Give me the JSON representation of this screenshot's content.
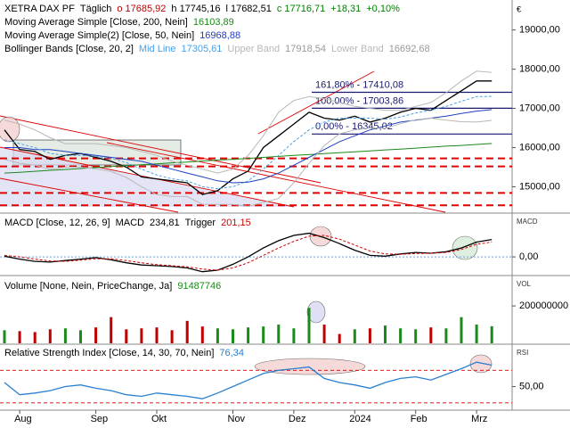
{
  "chart_data": [
    {
      "type": "line",
      "title": "XETRA DAX PF",
      "subtitle": "Täglich",
      "quote": [
        {
          "text": "o 17685,92",
          "color": "#c00000"
        },
        {
          "text": "h 17745,16",
          "color": "#000000"
        },
        {
          "text": "l 17682,51",
          "color": "#000000"
        },
        {
          "text": "c 17716,71",
          "color": "#008000"
        },
        {
          "text": "+18,31",
          "color": "#008000"
        },
        {
          "text": "+0,10%",
          "color": "#008000"
        }
      ],
      "currency": "€",
      "ylim": [
        14350,
        19720
      ],
      "yticks": [
        {
          "value": 15000,
          "label": "15000,00"
        },
        {
          "value": 16000,
          "label": "16000,00"
        },
        {
          "value": 17000,
          "label": "17000,00"
        },
        {
          "value": 18000,
          "label": "18000,00"
        },
        {
          "value": 19000,
          "label": "19000,00"
        }
      ],
      "series": [
        {
          "color": "#000000",
          "values": [
            16450,
            15950,
            15900,
            15700,
            15800,
            15850,
            15750,
            15650,
            15500,
            15250,
            15200,
            15150,
            15100,
            14800,
            14900,
            15200,
            15400,
            16000,
            16300,
            16600,
            16900,
            16750,
            16700,
            16800,
            16650,
            16750,
            16900,
            17000,
            16950,
            17200,
            17450,
            17700,
            17700
          ]
        },
        {
          "name": "Moving Average Simple [Close, 200, Nein]",
          "legend_value": "16103,89",
          "color": "#1a8a1a",
          "values": [
            15350,
            15370,
            15395,
            15420,
            15440,
            15465,
            15490,
            15515,
            15540,
            15560,
            15585,
            15610,
            15630,
            15655,
            15680,
            15700,
            15725,
            15750,
            15775,
            15800,
            15820,
            15845,
            15870,
            15890,
            15915,
            15940,
            15960,
            15985,
            16010,
            16035,
            16055,
            16080,
            16103.89
          ]
        },
        {
          "name": "Moving Average Simple(2) [Close, 50, Nein]",
          "legend_value": "16968,88",
          "color": "#1f3fbf",
          "values": [
            16000,
            16000,
            15950,
            15950,
            15900,
            15850,
            15800,
            15750,
            15700,
            15650,
            15550,
            15450,
            15350,
            15250,
            15150,
            15100,
            15120,
            15200,
            15350,
            15550,
            15750,
            15950,
            16150,
            16300,
            16450,
            16550,
            16650,
            16700,
            16750,
            16800,
            16870,
            16930,
            16968.88
          ]
        },
        {
          "group": "Bollinger Bands [Close, 20, 2]",
          "name": "Mid Line",
          "legend_value": "17305,61",
          "color": "#4aa0e8",
          "dash": true,
          "values": [
            16200,
            16100,
            16000,
            15850,
            15800,
            15800,
            15780,
            15720,
            15620,
            15450,
            15300,
            15200,
            15150,
            15000,
            14950,
            15000,
            15150,
            15450,
            15800,
            16150,
            16450,
            16650,
            16750,
            16750,
            16750,
            16720,
            16780,
            16880,
            16950,
            17050,
            17180,
            17300,
            17305.61
          ]
        },
        {
          "group": "Bollinger Bands [Close, 20, 2]",
          "name": "Upper Band",
          "legend_value": "17918,54",
          "color": "#b8b8b8",
          "values": [
            16700,
            16600,
            16450,
            16250,
            16100,
            16100,
            16100,
            16050,
            16000,
            15900,
            15800,
            15650,
            15550,
            15450,
            15350,
            15450,
            15800,
            16300,
            16900,
            17200,
            17300,
            17250,
            17150,
            17050,
            17000,
            16950,
            16950,
            17050,
            17150,
            17400,
            17700,
            17950,
            17918.54
          ]
        },
        {
          "group": "Bollinger Bands [Close, 20, 2]",
          "name": "Lower Band",
          "legend_value": "16692,68",
          "color": "#b8b8b8",
          "values": [
            15700,
            15600,
            15550,
            15450,
            15500,
            15500,
            15460,
            15390,
            15240,
            15000,
            14800,
            14750,
            14750,
            14550,
            14550,
            14550,
            14500,
            14600,
            14700,
            15100,
            15600,
            16050,
            16350,
            16450,
            16500,
            16490,
            16610,
            16710,
            16750,
            16700,
            16660,
            16650,
            16692.68
          ]
        }
      ],
      "fib_levels": [
        {
          "value": 17410.08,
          "label": "161,80% - 17410,08"
        },
        {
          "value": 17003.86,
          "label": "100,00% - 17003,86"
        },
        {
          "value": 16345.02,
          "label": "0,00% - 16345,02"
        }
      ],
      "support_levels": [
        15723,
        15520,
        14842,
        14525
      ]
    },
    {
      "type": "line",
      "title": "MACD [Close, 12, 26, 9]",
      "axis_label": "MACD",
      "ylim": [
        -240,
        580
      ],
      "yticks": [
        {
          "value": 0,
          "label": "0,00"
        }
      ],
      "series": [
        {
          "name": "MACD",
          "legend_value": "234,81",
          "color": "#000000",
          "values": [
            10,
            -30,
            -60,
            -70,
            -50,
            -30,
            -10,
            -40,
            -80,
            -110,
            -120,
            -130,
            -150,
            -200,
            -180,
            -100,
            0,
            120,
            220,
            290,
            320,
            260,
            180,
            90,
            20,
            10,
            40,
            60,
            50,
            70,
            120,
            200,
            234.81
          ]
        },
        {
          "name": "Trigger",
          "legend_value": "201,15",
          "color": "#d00000",
          "dash": true,
          "values": [
            20,
            0,
            -30,
            -55,
            -60,
            -45,
            -25,
            -25,
            -50,
            -80,
            -105,
            -120,
            -135,
            -165,
            -180,
            -150,
            -80,
            20,
            120,
            210,
            280,
            290,
            240,
            160,
            80,
            40,
            35,
            45,
            50,
            60,
            100,
            170,
            201.15
          ]
        }
      ]
    },
    {
      "type": "bar",
      "title": "Volume [None, Nein, PriceChange, Ja]",
      "axis_label": "VOL",
      "ylim": [
        0,
        358000000
      ],
      "yticks": [
        200000000
      ],
      "series": [
        {
          "legend_value": "91487746",
          "color": "#1a8a1a",
          "down_color": "#c00000",
          "values": [
            70000000,
            65000000,
            60000000,
            75000000,
            80000000,
            70000000,
            85000000,
            140000000,
            75000000,
            80000000,
            85000000,
            70000000,
            120000000,
            90000000,
            80000000,
            75000000,
            85000000,
            90000000,
            100000000,
            80000000,
            190000000,
            100000000,
            50000000,
            75000000,
            80000000,
            95000000,
            80000000,
            75000000,
            85000000,
            80000000,
            140000000,
            100000000,
            91487746
          ]
        }
      ]
    },
    {
      "type": "line",
      "title": "Relative Strength Index [Close, 14, 30, 70, Nein]",
      "axis_label": "RSI",
      "ylim": [
        21,
        101
      ],
      "yticks": [
        {
          "value": 50,
          "label": "50,00"
        }
      ],
      "levels": [
        30,
        70
      ],
      "series": [
        {
          "legend_value": "76,34",
          "color": "#2a7fd0",
          "values": [
            55,
            40,
            42,
            45,
            50,
            52,
            48,
            45,
            40,
            38,
            42,
            40,
            38,
            35,
            42,
            50,
            58,
            66,
            70,
            72,
            74,
            60,
            55,
            52,
            48,
            55,
            60,
            62,
            58,
            65,
            72,
            80,
            76.34
          ]
        }
      ],
      "categories": [
        null,
        "Aug",
        null,
        null,
        null,
        null,
        "Sep",
        null,
        null,
        null,
        "Okt",
        null,
        null,
        null,
        null,
        "Nov",
        null,
        null,
        null,
        "Dez",
        null,
        null,
        null,
        "2024",
        null,
        null,
        null,
        "Feb",
        null,
        null,
        null,
        "Mrz",
        null
      ]
    }
  ]
}
